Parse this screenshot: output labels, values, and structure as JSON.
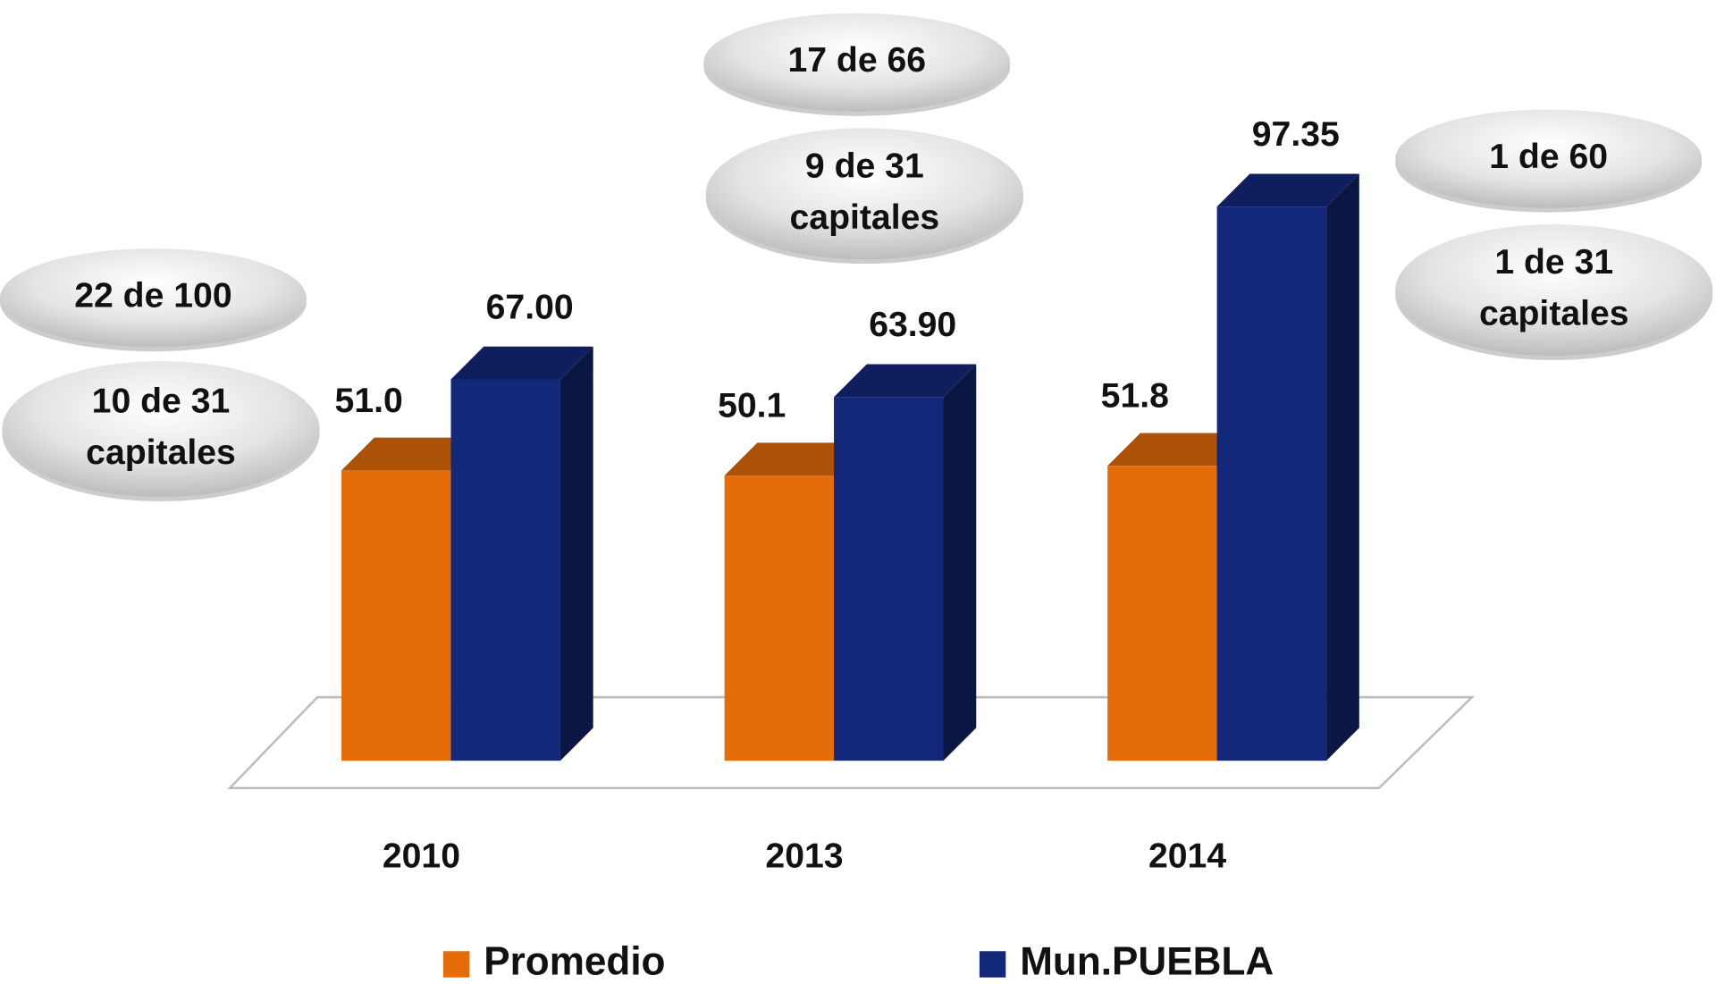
{
  "chart_data": {
    "type": "bar3d",
    "categories": [
      "2010",
      "2013",
      "2014"
    ],
    "series": [
      {
        "name": "Promedio",
        "color": "#e46c0a",
        "values": [
          51.0,
          50.1,
          51.8
        ],
        "value_labels": [
          "51.0",
          "50.1",
          "51.8"
        ]
      },
      {
        "name": "Mun.PUEBLA",
        "color": "#14287a",
        "values": [
          67.0,
          63.9,
          97.35
        ],
        "value_labels": [
          "67.00",
          "63.90",
          "97.35"
        ]
      }
    ],
    "annotations": [
      {
        "lines": [
          "22 de 100"
        ]
      },
      {
        "lines": [
          "10 de 31",
          "capitales"
        ]
      },
      {
        "lines": [
          "17 de 66"
        ]
      },
      {
        "lines": [
          "9 de 31",
          "capitales"
        ]
      },
      {
        "lines": [
          "1 de 60"
        ]
      },
      {
        "lines": [
          "1 de 31",
          "capitales"
        ]
      }
    ]
  }
}
